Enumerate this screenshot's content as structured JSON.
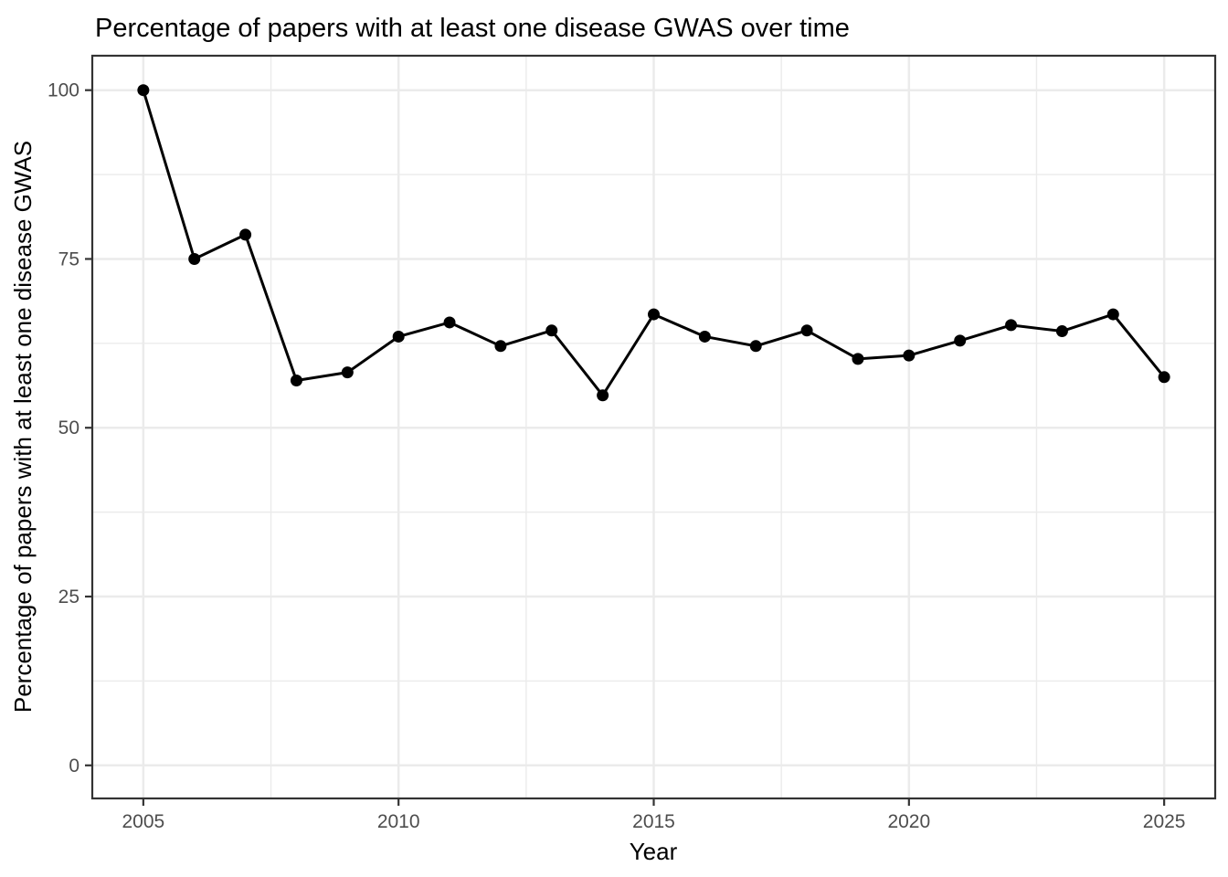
{
  "chart_data": {
    "type": "line",
    "title": "Percentage of papers with at least one disease GWAS over time",
    "xlabel": "Year",
    "ylabel": "Percentage of papers with at least one disease GWAS",
    "x": [
      2005,
      2006,
      2007,
      2008,
      2009,
      2010,
      2011,
      2012,
      2013,
      2014,
      2015,
      2016,
      2017,
      2018,
      2019,
      2020,
      2021,
      2022,
      2023,
      2024,
      2025
    ],
    "values": [
      100,
      75,
      78.6,
      57.0,
      58.2,
      63.5,
      65.6,
      62.1,
      64.4,
      54.8,
      66.8,
      63.5,
      62.1,
      64.4,
      60.2,
      60.7,
      62.9,
      65.2,
      64.3,
      66.8,
      57.5
    ],
    "xticks": [
      2005,
      2010,
      2015,
      2020,
      2025
    ],
    "yticks": [
      0,
      25,
      50,
      75,
      100
    ],
    "xlim": [
      2004.0,
      2026.0
    ],
    "ylim": [
      -4.9,
      105.1
    ],
    "grid": "major-and-minor",
    "legend": "none",
    "series_name": "percent_with_disease_gwas",
    "colors": {
      "line": "#000000",
      "point": "#000000",
      "grid_major": "#ebebeb",
      "grid_minor": "#ebebeb",
      "panel_border": "#333333",
      "tick_mark": "#333333",
      "tick_label": "#4d4d4d",
      "axis_title": "#000000",
      "title": "#000000",
      "background": "#ffffff"
    }
  }
}
